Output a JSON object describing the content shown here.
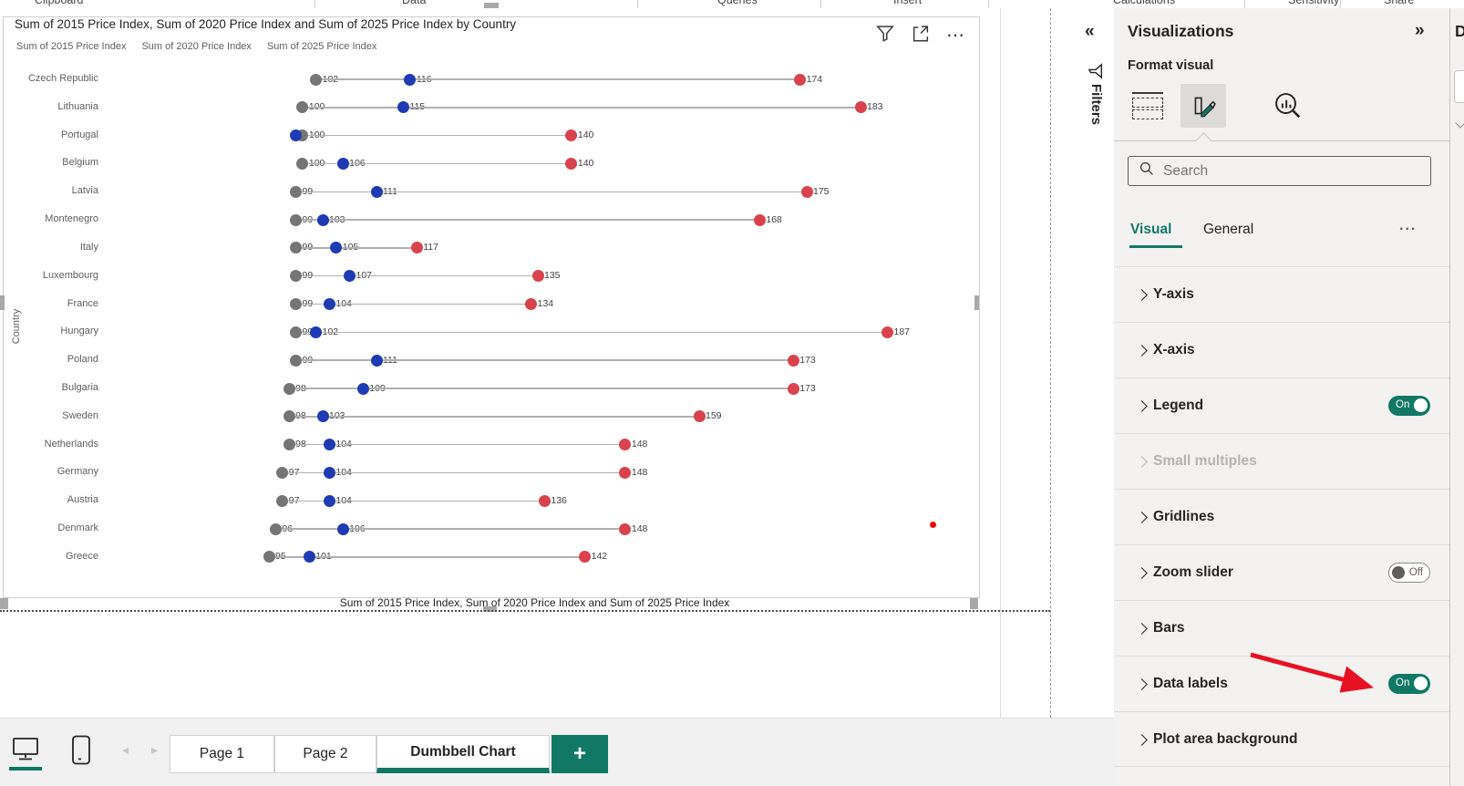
{
  "ribbon": {
    "groups": [
      "Clipboard",
      "Data",
      "Queries",
      "Insert",
      "Calculations",
      "Sensitivity",
      "Share"
    ]
  },
  "visual": {
    "title": "Sum of 2015 Price Index, Sum of 2020 Price Index and Sum of 2025 Price Index by Country",
    "x_axis_title": "Sum of 2015 Price Index, Sum of 2020 Price Index and Sum of 2025 Price Index",
    "y_axis_title": "Country",
    "header_icons": [
      "filter-icon",
      "focus-mode-icon",
      "more-options-icon"
    ]
  },
  "chart_data": {
    "type": "dumbbell",
    "orientation": "horizontal",
    "legend_position": "top",
    "xlim": [
      95,
      190
    ],
    "grid": false,
    "series_names": [
      "Sum of 2015 Price Index",
      "Sum of 2020 Price Index",
      "Sum of 2025 Price Index"
    ],
    "series_colors": [
      "#757575",
      "#1f3bb3",
      "#d9434e"
    ],
    "categories": [
      "Czech Republic",
      "Lithuania",
      "Portugal",
      "Belgium",
      "Latvia",
      "Montenegro",
      "Italy",
      "Luxembourg",
      "France",
      "Hungary",
      "Poland",
      "Bulgaria",
      "Sweden",
      "Netherlands",
      "Germany",
      "Austria",
      "Denmark",
      "Greece"
    ],
    "rows": [
      {
        "country": "Czech Republic",
        "values": [
          102,
          116,
          174
        ],
        "labels": [
          "102",
          "116",
          "174"
        ]
      },
      {
        "country": "Lithuania",
        "values": [
          100,
          115,
          183
        ],
        "labels": [
          "100",
          "115",
          "183"
        ]
      },
      {
        "country": "Portugal",
        "values": [
          100,
          99,
          140
        ],
        "labels": [
          "100",
          "",
          "140"
        ]
      },
      {
        "country": "Belgium",
        "values": [
          100,
          106,
          140
        ],
        "labels": [
          "100",
          "106",
          "140"
        ]
      },
      {
        "country": "Latvia",
        "values": [
          99,
          111,
          175
        ],
        "labels": [
          "99",
          "111",
          "175"
        ]
      },
      {
        "country": "Montenegro",
        "values": [
          99,
          103,
          168
        ],
        "labels": [
          "99",
          "103",
          "168"
        ]
      },
      {
        "country": "Italy",
        "values": [
          99,
          105,
          117
        ],
        "labels": [
          "99",
          "105",
          "117"
        ]
      },
      {
        "country": "Luxembourg",
        "values": [
          99,
          107,
          135
        ],
        "labels": [
          "99",
          "107",
          "135"
        ]
      },
      {
        "country": "France",
        "values": [
          99,
          104,
          134
        ],
        "labels": [
          "99",
          "104",
          "134"
        ]
      },
      {
        "country": "Hungary",
        "values": [
          99,
          102,
          187
        ],
        "labels": [
          "99",
          "102",
          "187"
        ]
      },
      {
        "country": "Poland",
        "values": [
          99,
          111,
          173
        ],
        "labels": [
          "99",
          "111",
          "173"
        ]
      },
      {
        "country": "Bulgaria",
        "values": [
          98,
          109,
          173
        ],
        "labels": [
          "98",
          "109",
          "173"
        ]
      },
      {
        "country": "Sweden",
        "values": [
          98,
          103,
          159
        ],
        "labels": [
          "98",
          "103",
          "159"
        ]
      },
      {
        "country": "Netherlands",
        "values": [
          98,
          104,
          148
        ],
        "labels": [
          "98",
          "104",
          "148"
        ]
      },
      {
        "country": "Germany",
        "values": [
          97,
          104,
          148
        ],
        "labels": [
          "97",
          "104",
          "148"
        ]
      },
      {
        "country": "Austria",
        "values": [
          97,
          104,
          136
        ],
        "labels": [
          "97",
          "104",
          "136"
        ]
      },
      {
        "country": "Denmark",
        "values": [
          96,
          106,
          148
        ],
        "labels": [
          "96",
          "106",
          "148"
        ]
      },
      {
        "country": "Greece",
        "values": [
          95,
          101,
          142
        ],
        "labels": [
          "95",
          "101",
          "142"
        ]
      }
    ]
  },
  "filters_pane": {
    "collapse_icon": "«",
    "label": "Filters"
  },
  "viz_pane": {
    "title": "Visualizations",
    "expand_icon": "»",
    "subtitle": "Format visual",
    "builder_icons": [
      "add-visual-icon",
      "format-visual-icon",
      "analytics-icon"
    ],
    "search_placeholder": "Search",
    "tabs": [
      {
        "label": "Visual",
        "active": true
      },
      {
        "label": "General",
        "active": false
      }
    ],
    "more_label": "...",
    "sections": [
      {
        "label": "Y-axis"
      },
      {
        "label": "X-axis"
      },
      {
        "label": "Legend",
        "toggle": "On"
      },
      {
        "label": "Small multiples",
        "disabled": true
      },
      {
        "label": "Gridlines"
      },
      {
        "label": "Zoom slider",
        "toggle": "Off"
      },
      {
        "label": "Bars"
      },
      {
        "label": "Data labels",
        "toggle": "On",
        "annotated": true
      },
      {
        "label": "Plot area background"
      }
    ]
  },
  "data_pane": {
    "title_partial": "D"
  },
  "bottom_bar": {
    "view_icons": [
      "desktop-view-icon",
      "mobile-view-icon"
    ],
    "nav_icons": [
      "page-back-icon",
      "page-forward-icon"
    ],
    "tabs": [
      {
        "label": "Page 1",
        "active": false
      },
      {
        "label": "Page 2",
        "active": false
      },
      {
        "label": "Dumbbell Chart",
        "active": true
      }
    ],
    "add_page_label": "+"
  },
  "colors": {
    "accent": "#117865",
    "dot_2015": "#757575",
    "dot_2020": "#1f3bb3",
    "dot_2025": "#d9434e",
    "annotation_arrow": "#e81123",
    "annotation_dot": "#ff0000"
  }
}
